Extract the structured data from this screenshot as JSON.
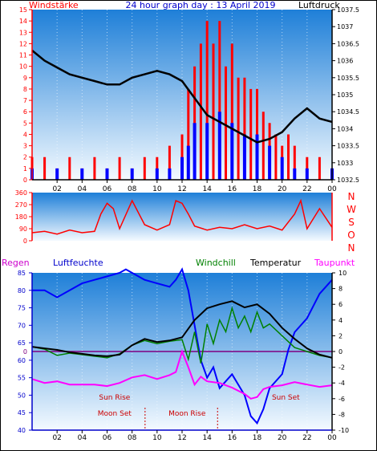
{
  "header": {
    "left_label": "Windstärke",
    "title": "24 hour graph day : 13 April 2019",
    "right_label": "Luftdruck"
  },
  "dir_labels": [
    "N",
    "W",
    "S",
    "O",
    "N"
  ],
  "bottom_header": {
    "regen": "Regen",
    "luftfeuchte": "Luftfeuchte",
    "windchill": "Windchill",
    "temperatur": "Temperatur",
    "taupunkt": "Taupunkt"
  },
  "events": [
    {
      "label": "Sun Rise",
      "time_h": 6.6,
      "row": "upper"
    },
    {
      "label": "Moon Set",
      "time_h": 6.6,
      "row": "lower"
    },
    {
      "label": "Moon Rise",
      "time_h": 12.4,
      "row": "lower"
    },
    {
      "label": "Sun Set",
      "time_h": 20.3,
      "row": "upper"
    }
  ],
  "colors": {
    "wind_gust": "#ff0000",
    "wind_avg": "#0000ff",
    "pressure": "#000000",
    "humidity": "#0000ff",
    "temperature": "#000000",
    "windchill": "#008000",
    "dewpoint": "#ff00ff",
    "axis_red": "#ff0000",
    "axis_blue": "#0000cc",
    "zero_line": "#800080",
    "bg_top": "#1e90ff",
    "bg_bottom": "#f0f8ff"
  },
  "chart_data": [
    {
      "type": "line",
      "name": "wind_pressure",
      "x_ticks": [
        "02",
        "04",
        "06",
        "08",
        "10",
        "12",
        "14",
        "16",
        "18",
        "20",
        "22",
        "00"
      ],
      "x_range_h": [
        0,
        24
      ],
      "y_left": {
        "label": "Windstärke",
        "range": [
          0,
          15
        ],
        "ticks": [
          "0",
          "1",
          "2",
          "3",
          "4",
          "5",
          "6",
          "7",
          "8",
          "9",
          "10",
          "11",
          "12",
          "13",
          "14",
          "15"
        ]
      },
      "y_right": {
        "label": "Luftdruck",
        "range": [
          1032.5,
          1037.5
        ],
        "ticks": [
          "1032.5",
          "1033",
          "1033.5",
          "1034",
          "1034.5",
          "1035",
          "1035.5",
          "1036",
          "1036.5",
          "1037",
          "1037.5"
        ]
      },
      "series": [
        {
          "name": "Luftdruck",
          "axis": "right",
          "points": [
            [
              0,
              1036.3
            ],
            [
              1,
              1036.0
            ],
            [
              2,
              1035.8
            ],
            [
              3,
              1035.6
            ],
            [
              4,
              1035.5
            ],
            [
              5,
              1035.4
            ],
            [
              6,
              1035.3
            ],
            [
              7,
              1035.3
            ],
            [
              8,
              1035.5
            ],
            [
              9,
              1035.6
            ],
            [
              10,
              1035.7
            ],
            [
              11,
              1035.6
            ],
            [
              12,
              1035.4
            ],
            [
              13,
              1034.9
            ],
            [
              14,
              1034.4
            ],
            [
              15,
              1034.2
            ],
            [
              16,
              1034.0
            ],
            [
              17,
              1033.8
            ],
            [
              18,
              1033.6
            ],
            [
              19,
              1033.7
            ],
            [
              20,
              1033.9
            ],
            [
              21,
              1034.3
            ],
            [
              22,
              1034.6
            ],
            [
              23,
              1034.3
            ],
            [
              24,
              1034.2
            ]
          ]
        },
        {
          "name": "Windstärke Böen",
          "axis": "left",
          "points": [
            [
              0,
              2
            ],
            [
              1,
              2
            ],
            [
              2,
              1
            ],
            [
              3,
              2
            ],
            [
              4,
              1
            ],
            [
              5,
              2
            ],
            [
              6,
              1
            ],
            [
              7,
              2
            ],
            [
              8,
              1
            ],
            [
              9,
              2
            ],
            [
              10,
              2
            ],
            [
              11,
              3
            ],
            [
              12,
              4
            ],
            [
              12.5,
              8
            ],
            [
              13,
              10
            ],
            [
              13.5,
              12
            ],
            [
              14,
              14
            ],
            [
              14.5,
              12
            ],
            [
              15,
              14
            ],
            [
              15.5,
              10
            ],
            [
              16,
              12
            ],
            [
              16.5,
              9
            ],
            [
              17,
              9
            ],
            [
              17.5,
              8
            ],
            [
              18,
              8
            ],
            [
              18.5,
              6
            ],
            [
              19,
              5
            ],
            [
              19.5,
              4
            ],
            [
              20,
              3
            ],
            [
              20.5,
              4
            ],
            [
              21,
              3
            ],
            [
              22,
              2
            ],
            [
              23,
              2
            ],
            [
              24,
              1
            ]
          ]
        },
        {
          "name": "Windstärke Mittel",
          "axis": "left",
          "points": [
            [
              0,
              1
            ],
            [
              2,
              1
            ],
            [
              4,
              1
            ],
            [
              6,
              1
            ],
            [
              8,
              1
            ],
            [
              10,
              1
            ],
            [
              11,
              1
            ],
            [
              12,
              2
            ],
            [
              12.5,
              3
            ],
            [
              13,
              5
            ],
            [
              14,
              5
            ],
            [
              15,
              6
            ],
            [
              16,
              5
            ],
            [
              17,
              4
            ],
            [
              18,
              4
            ],
            [
              19,
              3
            ],
            [
              20,
              2
            ],
            [
              21,
              1
            ],
            [
              22,
              1
            ],
            [
              24,
              1
            ]
          ]
        }
      ]
    },
    {
      "type": "line",
      "name": "wind_direction",
      "x_range_h": [
        0,
        24
      ],
      "y": {
        "range": [
          0,
          360
        ],
        "ticks": [
          "0",
          "90",
          "180",
          "270",
          "360"
        ]
      },
      "series": [
        {
          "name": "Windrichtung",
          "points": [
            [
              0,
              60
            ],
            [
              1,
              70
            ],
            [
              2,
              50
            ],
            [
              3,
              80
            ],
            [
              4,
              60
            ],
            [
              5,
              70
            ],
            [
              5.5,
              200
            ],
            [
              6,
              280
            ],
            [
              6.5,
              240
            ],
            [
              7,
              90
            ],
            [
              8,
              300
            ],
            [
              9,
              120
            ],
            [
              10,
              80
            ],
            [
              11,
              120
            ],
            [
              11.5,
              300
            ],
            [
              12,
              280
            ],
            [
              12.5,
              200
            ],
            [
              13,
              110
            ],
            [
              14,
              80
            ],
            [
              15,
              100
            ],
            [
              16,
              90
            ],
            [
              17,
              120
            ],
            [
              18,
              90
            ],
            [
              19,
              110
            ],
            [
              20,
              80
            ],
            [
              21,
              200
            ],
            [
              21.5,
              300
            ],
            [
              22,
              90
            ],
            [
              23,
              240
            ],
            [
              24,
              100
            ]
          ]
        }
      ]
    },
    {
      "type": "line",
      "name": "temp_humidity",
      "x_range_h": [
        0,
        24
      ],
      "y_left": {
        "label": "Luftfeuchte",
        "range": [
          40,
          85
        ],
        "ticks": [
          "40",
          "45",
          "50",
          "55",
          "60",
          "65",
          "70",
          "75",
          "80",
          "85"
        ]
      },
      "y_right": {
        "label": "Temperatur",
        "range": [
          -10,
          10
        ],
        "ticks": [
          "-10",
          "-8",
          "-6",
          "-4",
          "-2",
          "0",
          "2",
          "4",
          "6",
          "8",
          "10"
        ]
      },
      "zero_label": "0",
      "series": [
        {
          "name": "Luftfeuchte",
          "axis": "left",
          "points": [
            [
              0,
              80
            ],
            [
              1,
              80
            ],
            [
              2,
              78
            ],
            [
              3,
              80
            ],
            [
              4,
              82
            ],
            [
              5,
              83
            ],
            [
              6,
              84
            ],
            [
              7,
              85
            ],
            [
              7.5,
              86
            ],
            [
              8,
              85
            ],
            [
              9,
              83
            ],
            [
              10,
              82
            ],
            [
              11,
              81
            ],
            [
              11.5,
              83
            ],
            [
              12,
              86
            ],
            [
              12.5,
              80
            ],
            [
              13,
              70
            ],
            [
              13.5,
              60
            ],
            [
              14,
              55
            ],
            [
              14.5,
              58
            ],
            [
              15,
              52
            ],
            [
              16,
              56
            ],
            [
              17,
              50
            ],
            [
              17.5,
              44
            ],
            [
              18,
              42
            ],
            [
              18.5,
              46
            ],
            [
              19,
              52
            ],
            [
              20,
              56
            ],
            [
              20.5,
              63
            ],
            [
              21,
              68
            ],
            [
              22,
              72
            ],
            [
              23,
              79
            ],
            [
              24,
              83
            ]
          ]
        },
        {
          "name": "Temperatur",
          "axis": "right",
          "points": [
            [
              0,
              0.6
            ],
            [
              1,
              0.4
            ],
            [
              2,
              0.2
            ],
            [
              3,
              -0.1
            ],
            [
              4,
              -0.3
            ],
            [
              5,
              -0.5
            ],
            [
              6,
              -0.6
            ],
            [
              7,
              -0.4
            ],
            [
              8,
              0.8
            ],
            [
              9,
              1.6
            ],
            [
              10,
              1.2
            ],
            [
              11,
              1.4
            ],
            [
              12,
              1.8
            ],
            [
              13,
              4.0
            ],
            [
              14,
              5.5
            ],
            [
              15,
              6.0
            ],
            [
              16,
              6.4
            ],
            [
              17,
              5.6
            ],
            [
              18,
              6.0
            ],
            [
              19,
              4.8
            ],
            [
              20,
              3.0
            ],
            [
              21,
              1.6
            ],
            [
              22,
              0.4
            ],
            [
              23,
              -0.4
            ],
            [
              24,
              -0.8
            ]
          ]
        },
        {
          "name": "Windchill",
          "axis": "right",
          "points": [
            [
              0,
              0.6
            ],
            [
              1,
              0.3
            ],
            [
              2,
              -0.5
            ],
            [
              3,
              -0.2
            ],
            [
              4,
              -0.4
            ],
            [
              5,
              -0.6
            ],
            [
              6,
              -0.8
            ],
            [
              7,
              -0.3
            ],
            [
              8,
              0.8
            ],
            [
              9,
              1.4
            ],
            [
              10,
              1.0
            ],
            [
              11,
              1.3
            ],
            [
              12,
              1.5
            ],
            [
              12.5,
              -1
            ],
            [
              13,
              2.5
            ],
            [
              13.5,
              -1.5
            ],
            [
              14,
              3.5
            ],
            [
              14.5,
              1
            ],
            [
              15,
              4
            ],
            [
              15.5,
              2.5
            ],
            [
              16,
              5.5
            ],
            [
              16.5,
              3
            ],
            [
              17,
              4.5
            ],
            [
              17.5,
              2.5
            ],
            [
              18,
              5
            ],
            [
              18.5,
              3
            ],
            [
              19,
              3.5
            ],
            [
              20,
              2
            ],
            [
              21,
              0.5
            ],
            [
              22,
              0
            ],
            [
              23,
              -0.5
            ],
            [
              24,
              -0.8
            ]
          ]
        },
        {
          "name": "Taupunkt",
          "axis": "right",
          "points": [
            [
              0,
              -3.5
            ],
            [
              1,
              -4
            ],
            [
              2,
              -3.8
            ],
            [
              3,
              -4.2
            ],
            [
              4,
              -4.2
            ],
            [
              5,
              -4.2
            ],
            [
              6,
              -4.4
            ],
            [
              7,
              -4
            ],
            [
              8,
              -3.3
            ],
            [
              9,
              -3
            ],
            [
              10,
              -3.5
            ],
            [
              11,
              -3.0
            ],
            [
              11.5,
              -2.6
            ],
            [
              12,
              0
            ],
            [
              12.5,
              -2
            ],
            [
              13,
              -4.2
            ],
            [
              13.5,
              -3.2
            ],
            [
              14,
              -3.8
            ],
            [
              15,
              -4
            ],
            [
              16,
              -4.6
            ],
            [
              17,
              -5.4
            ],
            [
              17.5,
              -6
            ],
            [
              18,
              -5.8
            ],
            [
              18.5,
              -4.8
            ],
            [
              19,
              -4.5
            ],
            [
              20,
              -4.3
            ],
            [
              21,
              -3.9
            ],
            [
              22,
              -4.2
            ],
            [
              23,
              -4.5
            ],
            [
              24,
              -4.3
            ]
          ]
        }
      ]
    }
  ]
}
